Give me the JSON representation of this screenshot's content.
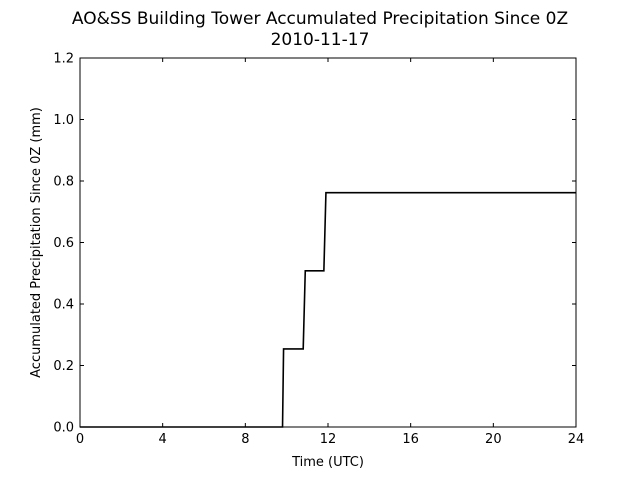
{
  "chart_data": {
    "type": "line",
    "title": "AO&SS Building Tower Accumulated Precipitation Since 0Z",
    "subtitle": "2010-11-17",
    "xlabel": "Time (UTC)",
    "ylabel": "Accumulated Precipitation Since 0Z (mm)",
    "xlim": [
      0,
      24
    ],
    "ylim": [
      0,
      1.2
    ],
    "x_ticks": [
      0,
      4,
      8,
      12,
      16,
      20,
      24
    ],
    "x_tick_labels": [
      "0",
      "4",
      "8",
      "12",
      "16",
      "20",
      "24"
    ],
    "y_ticks": [
      0,
      0.2,
      0.4,
      0.6,
      0.8,
      1.0,
      1.2
    ],
    "y_tick_labels": [
      "0.0",
      "0.2",
      "0.4",
      "0.6",
      "0.8",
      "1.0",
      "1.2"
    ],
    "grid": false,
    "series": [
      {
        "color": "#000000",
        "x": [
          0,
          9.8,
          9.85,
          10.8,
          10.9,
          11.8,
          11.9,
          24
        ],
        "y": [
          0,
          0,
          0.254,
          0.254,
          0.508,
          0.508,
          0.762,
          0.762
        ]
      }
    ]
  }
}
